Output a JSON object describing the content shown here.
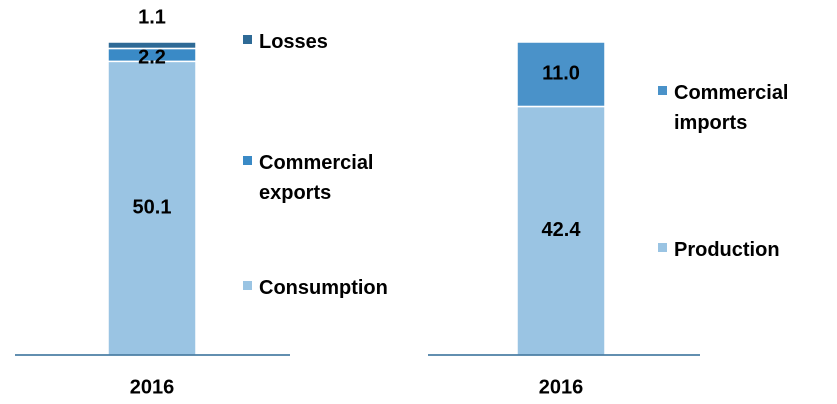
{
  "chart_data": [
    {
      "type": "bar",
      "categories": [
        "2016"
      ],
      "series": [
        {
          "name": "Consumption",
          "color": "#9ac4e3",
          "values": [
            50.1
          ]
        },
        {
          "name": "Commercial exports",
          "color": "#3a8ac6",
          "values": [
            2.2
          ]
        },
        {
          "name": "Losses",
          "color": "#2e6a96",
          "values": [
            1.1
          ]
        }
      ]
    },
    {
      "type": "bar",
      "categories": [
        "2016"
      ],
      "series": [
        {
          "name": "Production",
          "color": "#9ac4e3",
          "values": [
            42.4
          ]
        },
        {
          "name": "Commercial imports",
          "color": "#4a92c9",
          "values": [
            11
          ],
          "value_labels": [
            "11.0"
          ]
        }
      ]
    }
  ]
}
